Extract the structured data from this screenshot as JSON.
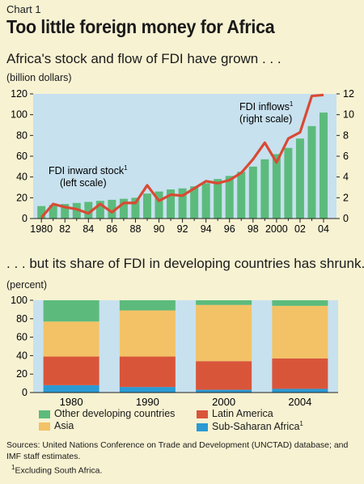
{
  "chart_label": "Chart 1",
  "headline": "Too little foreign money for Africa",
  "colors": {
    "background": "#f7f2d2",
    "plot_bg": "#c7e1ef",
    "bar_green": "#5cbb7c",
    "line_red": "#d94a33",
    "asia": "#f3c266",
    "latin_america": "#d9553a",
    "ssa": "#2a9ad4",
    "other": "#5cbb7c"
  },
  "chart_data": [
    {
      "type": "bar+line",
      "subtitle": "Africa's stock and flow of FDI have grown . . .",
      "unit_label": "(billion dollars)",
      "x": [
        1980,
        1981,
        1982,
        1983,
        1984,
        1985,
        1986,
        1987,
        1988,
        1989,
        1990,
        1991,
        1992,
        1993,
        1994,
        1995,
        1996,
        1997,
        1998,
        1999,
        2000,
        2001,
        2002,
        2003,
        2004
      ],
      "x_tick_labels": [
        "1980",
        "82",
        "84",
        "86",
        "88",
        "90",
        "92",
        "94",
        "96",
        "98",
        "2000",
        "02",
        "04"
      ],
      "series": [
        {
          "name": "FDI inward stock",
          "footnote": "1",
          "annotation_line2": "(left scale)",
          "type": "bar",
          "axis": "left",
          "values": [
            12,
            13,
            14,
            15,
            16,
            17,
            18,
            19,
            20,
            24,
            26,
            28,
            29,
            31,
            34,
            38,
            41,
            45,
            50,
            57,
            62,
            68,
            77,
            89,
            102
          ]
        },
        {
          "name": "FDI inflows",
          "footnote": "1",
          "annotation_line2": "(right scale)",
          "type": "line",
          "axis": "right",
          "values": [
            0.1,
            1.4,
            1.1,
            0.9,
            0.5,
            1.4,
            0.6,
            1.5,
            1.5,
            3.2,
            1.7,
            2.3,
            2.2,
            2.9,
            3.6,
            3.4,
            3.7,
            4.4,
            5.7,
            7.3,
            5.4,
            7.7,
            8.3,
            11.8,
            11.9
          ]
        }
      ],
      "ylim_left": [
        0,
        120
      ],
      "yticks_left": [
        0,
        20,
        40,
        60,
        80,
        100,
        120
      ],
      "ylim_right": [
        0,
        12
      ],
      "yticks_right": [
        0,
        2,
        4,
        6,
        8,
        10,
        12
      ],
      "grid": false
    },
    {
      "type": "stacked-bar",
      "subtitle": ". . . but its share of FDI in developing countries has shrunk.",
      "unit_label": "(percent)",
      "categories": [
        "1980",
        "1990",
        "2000",
        "2004"
      ],
      "series": [
        {
          "name": "Sub-Saharan Africa",
          "footnote": "1",
          "values": [
            8,
            6,
            3,
            4
          ]
        },
        {
          "name": "Latin America",
          "values": [
            31,
            33,
            31,
            33
          ]
        },
        {
          "name": "Asia",
          "values": [
            38,
            50,
            61,
            57
          ]
        },
        {
          "name": "Other developing countries",
          "values": [
            23,
            11,
            5,
            6
          ]
        }
      ],
      "ylim": [
        0,
        100
      ],
      "yticks": [
        0,
        20,
        40,
        60,
        80,
        100
      ],
      "legend_placement": "bottom"
    }
  ],
  "footer": {
    "sources": "Sources: United Nations Conference on Trade and Development (UNCTAD) database; and IMF staff estimates.",
    "footnote_marker": "1",
    "footnote": "Excluding South Africa."
  }
}
